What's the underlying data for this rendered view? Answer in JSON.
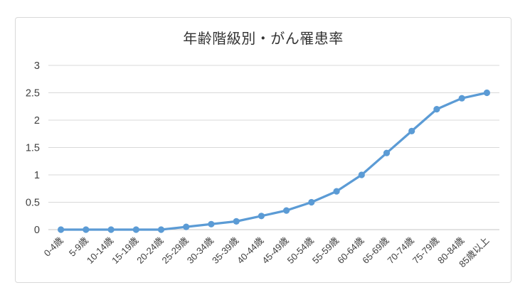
{
  "chart": {
    "colors": {
      "line": "#5B9BD5",
      "marker": "#5B9BD5",
      "grid": "#D9D9D9",
      "axis_line": "#C6C6C6",
      "tick_text": "#404040",
      "title_text": "#333333",
      "frame_border": "#D9D9D9",
      "background": "#ffffff"
    }
  },
  "chart_data": {
    "type": "line",
    "title": "年齢階級別・がん罹患率",
    "categories": [
      "0-4歳",
      "5-9歳",
      "10-14歳",
      "15-19歳",
      "20-24歳",
      "25-29歳",
      "30-34歳",
      "35-39歳",
      "40-44歳",
      "45-49歳",
      "50-54歳",
      "55-59歳",
      "60-64歳",
      "65-69歳",
      "70-74歳",
      "75-79歳",
      "80-84歳",
      "85歳以上"
    ],
    "values": [
      0,
      0,
      0,
      0,
      0,
      0.05,
      0.1,
      0.15,
      0.25,
      0.35,
      0.5,
      0.7,
      1,
      1.4,
      1.8,
      2.2,
      2.4,
      2.5
    ],
    "xlabel": "",
    "ylabel": "",
    "ylim": [
      0,
      3
    ],
    "yticks": [
      0,
      0.5,
      1,
      1.5,
      2,
      2.5,
      3
    ],
    "ytick_labels": [
      "0",
      "0.5",
      "1",
      "1.5",
      "2",
      "2.5",
      "3"
    ],
    "grid": true,
    "legend": false,
    "x_tick_rotation": -45,
    "marker": "circle"
  }
}
